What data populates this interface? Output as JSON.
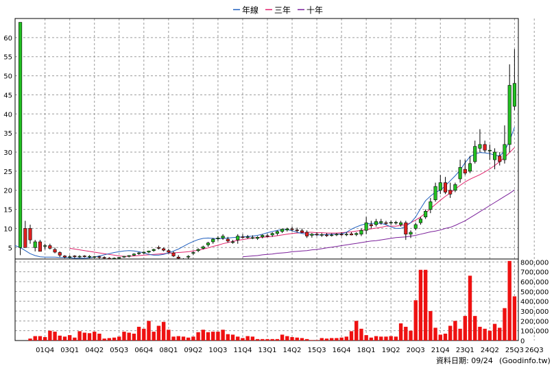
{
  "chart_data": {
    "type": "candlestick",
    "legend": [
      {
        "name": "年線",
        "color": "#1f5fbf"
      },
      {
        "name": "三年",
        "color": "#e0206a"
      },
      {
        "name": "十年",
        "color": "#7a1f9a"
      }
    ],
    "legend_position": "top-center",
    "price_axis": {
      "ylim": [
        2,
        65
      ],
      "ticks": [
        5,
        10,
        15,
        20,
        25,
        30,
        35,
        40,
        45,
        50,
        55,
        60
      ]
    },
    "volume_axis": {
      "ylim": [
        0,
        830000
      ],
      "ticks": [
        "0",
        "100,000",
        "200,000",
        "300,000",
        "400,000",
        "500,000",
        "600,000",
        "700,000",
        "800,000"
      ],
      "tick_values": [
        0,
        100000,
        200000,
        300000,
        400000,
        500000,
        600000,
        700000,
        800000
      ]
    },
    "x_tick_labels": [
      "01Q4",
      "03Q1",
      "04Q2",
      "05Q3",
      "06Q4",
      "08Q1",
      "09Q2",
      "10Q3",
      "11Q4",
      "13Q1",
      "14Q2",
      "15Q3",
      "16Q4",
      "18Q1",
      "19Q2",
      "20Q3",
      "21Q4",
      "23Q1",
      "24Q2",
      "25Q3",
      "26Q3"
    ],
    "x_tick_index": [
      5,
      10,
      15,
      20,
      25,
      30,
      35,
      40,
      45,
      50,
      55,
      60,
      65,
      70,
      75,
      80,
      85,
      90,
      95,
      100,
      104
    ],
    "grid": true,
    "up_color": "#22c022",
    "down_color": "#e02020",
    "volume_color": "#ee1111",
    "candles": [
      {
        "o": 5,
        "h": 64,
        "l": 3,
        "c": 64
      },
      {
        "o": 10,
        "h": 12,
        "l": 5,
        "c": 5
      },
      {
        "o": 10,
        "h": 11,
        "l": 6,
        "c": 7
      },
      {
        "o": 5,
        "h": 7,
        "l": 4,
        "c": 6.5
      },
      {
        "o": 6.5,
        "h": 7,
        "l": 4,
        "c": 4
      },
      {
        "o": 5.5,
        "h": 6,
        "l": 4.5,
        "c": 5.5
      },
      {
        "o": 5.5,
        "h": 6,
        "l": 4.5,
        "c": 4.8
      },
      {
        "o": 4.5,
        "h": 5,
        "l": 3.5,
        "c": 3.8
      },
      {
        "o": 3.7,
        "h": 4,
        "l": 2.5,
        "c": 3
      },
      {
        "o": 2.8,
        "h": 3,
        "l": 2.2,
        "c": 2.5
      },
      {
        "o": 2.5,
        "h": 3,
        "l": 2.2,
        "c": 2.6
      },
      {
        "o": 2.8,
        "h": 3,
        "l": 2.2,
        "c": 2.6
      },
      {
        "o": 2.6,
        "h": 3,
        "l": 2.3,
        "c": 2.7
      },
      {
        "o": 2.8,
        "h": 3,
        "l": 2.4,
        "c": 2.6
      },
      {
        "o": 2.5,
        "h": 3,
        "l": 2.2,
        "c": 2.7
      },
      {
        "o": 2.5,
        "h": 2.8,
        "l": 2.2,
        "c": 2.6
      },
      {
        "o": 2.6,
        "h": 2.8,
        "l": 2.1,
        "c": 2.4
      },
      {
        "o": 2.4,
        "h": 2.7,
        "l": 2.1,
        "c": 2.3
      },
      {
        "o": 2.2,
        "h": 2.5,
        "l": 1.8,
        "c": 2
      },
      {
        "o": 2.1,
        "h": 2.4,
        "l": 1.9,
        "c": 2.2
      },
      {
        "o": 2.2,
        "h": 2.5,
        "l": 2,
        "c": 2.4
      },
      {
        "o": 2.5,
        "h": 2.8,
        "l": 2.3,
        "c": 2.7
      },
      {
        "o": 2.7,
        "h": 3,
        "l": 2.4,
        "c": 2.9
      },
      {
        "o": 3,
        "h": 3.5,
        "l": 2.8,
        "c": 3.3
      },
      {
        "o": 3.4,
        "h": 3.8,
        "l": 3.1,
        "c": 3.6
      },
      {
        "o": 3.6,
        "h": 4,
        "l": 3.3,
        "c": 3.8
      },
      {
        "o": 3.8,
        "h": 4.2,
        "l": 3.5,
        "c": 4.1
      },
      {
        "o": 4.2,
        "h": 4.7,
        "l": 3.9,
        "c": 4.5
      },
      {
        "o": 5,
        "h": 5.5,
        "l": 4.5,
        "c": 4.8
      },
      {
        "o": 4.7,
        "h": 5,
        "l": 4,
        "c": 4.3
      },
      {
        "o": 4.2,
        "h": 4.6,
        "l": 3.5,
        "c": 3.8
      },
      {
        "o": 3.6,
        "h": 4,
        "l": 2.5,
        "c": 2.8
      },
      {
        "o": 2.5,
        "h": 3,
        "l": 1.2,
        "c": 2.2
      },
      {
        "o": 1.8,
        "h": 2.2,
        "l": 1.5,
        "c": 2
      },
      {
        "o": 2.5,
        "h": 3,
        "l": 2,
        "c": 2.7
      },
      {
        "o": 3.5,
        "h": 4,
        "l": 3,
        "c": 3.7
      },
      {
        "o": 4.2,
        "h": 4.8,
        "l": 3.8,
        "c": 4.5
      },
      {
        "o": 4.8,
        "h": 5.5,
        "l": 4.5,
        "c": 5.2
      },
      {
        "o": 5.7,
        "h": 6.5,
        "l": 5.2,
        "c": 6.2
      },
      {
        "o": 6.5,
        "h": 7.5,
        "l": 6,
        "c": 7.2
      },
      {
        "o": 7.3,
        "h": 8,
        "l": 6.8,
        "c": 7.5
      },
      {
        "o": 7.5,
        "h": 8.5,
        "l": 7,
        "c": 8
      },
      {
        "o": 7.2,
        "h": 7.8,
        "l": 6.3,
        "c": 6.7
      },
      {
        "o": 6.5,
        "h": 7,
        "l": 6,
        "c": 6.5
      },
      {
        "o": 7,
        "h": 8.5,
        "l": 6,
        "c": 8
      },
      {
        "o": 7.8,
        "h": 8.5,
        "l": 7.3,
        "c": 7.7
      },
      {
        "o": 7.6,
        "h": 8.3,
        "l": 7.3,
        "c": 7.8
      },
      {
        "o": 7.6,
        "h": 8.2,
        "l": 7.2,
        "c": 7.6
      },
      {
        "o": 7.4,
        "h": 8,
        "l": 7,
        "c": 7.7
      },
      {
        "o": 7.8,
        "h": 8.5,
        "l": 7.4,
        "c": 8.2
      },
      {
        "o": 8.1,
        "h": 8.6,
        "l": 7.7,
        "c": 8
      },
      {
        "o": 8.3,
        "h": 9,
        "l": 7.8,
        "c": 8.7
      },
      {
        "o": 8.7,
        "h": 9.5,
        "l": 8.2,
        "c": 9.2
      },
      {
        "o": 9.2,
        "h": 10,
        "l": 8.8,
        "c": 9.8
      },
      {
        "o": 9.6,
        "h": 10.2,
        "l": 9.2,
        "c": 9.9
      },
      {
        "o": 9.9,
        "h": 10.5,
        "l": 9.2,
        "c": 9.7
      },
      {
        "o": 9.6,
        "h": 10.2,
        "l": 9,
        "c": 9.4
      },
      {
        "o": 9.4,
        "h": 10,
        "l": 8.8,
        "c": 9
      },
      {
        "o": 9,
        "h": 9.5,
        "l": 7.5,
        "c": 8
      },
      {
        "o": 8.2,
        "h": 8.8,
        "l": 7.6,
        "c": 8.5
      },
      {
        "o": 8.5,
        "h": 9,
        "l": 8,
        "c": 8.4
      },
      {
        "o": 8.3,
        "h": 8.8,
        "l": 7.8,
        "c": 8.4
      },
      {
        "o": 8.3,
        "h": 8.8,
        "l": 7.8,
        "c": 8.1
      },
      {
        "o": 8.2,
        "h": 8.7,
        "l": 7.9,
        "c": 8.3
      },
      {
        "o": 8.3,
        "h": 8.8,
        "l": 8,
        "c": 8.5
      },
      {
        "o": 8.5,
        "h": 9,
        "l": 8,
        "c": 8.4
      },
      {
        "o": 8.4,
        "h": 9,
        "l": 8,
        "c": 8.5
      },
      {
        "o": 8.6,
        "h": 9,
        "l": 8.2,
        "c": 8.3
      },
      {
        "o": 8.4,
        "h": 9,
        "l": 8,
        "c": 8.7
      },
      {
        "o": 8.5,
        "h": 10,
        "l": 8,
        "c": 9.5
      },
      {
        "o": 9.5,
        "h": 13,
        "l": 8.5,
        "c": 11.5
      },
      {
        "o": 11,
        "h": 12,
        "l": 10,
        "c": 10.7
      },
      {
        "o": 11,
        "h": 12.5,
        "l": 10.5,
        "c": 11.8
      },
      {
        "o": 11.5,
        "h": 12.5,
        "l": 11,
        "c": 11.8
      },
      {
        "o": 11.5,
        "h": 12,
        "l": 11,
        "c": 11.3
      },
      {
        "o": 11.5,
        "h": 12,
        "l": 11,
        "c": 11.6
      },
      {
        "o": 11.5,
        "h": 12,
        "l": 11,
        "c": 11.6
      },
      {
        "o": 11,
        "h": 12,
        "l": 10.5,
        "c": 11.5
      },
      {
        "o": 11.5,
        "h": 12,
        "l": 7,
        "c": 8.5
      },
      {
        "o": 8.5,
        "h": 9.5,
        "l": 7.5,
        "c": 9
      },
      {
        "o": 10,
        "h": 11.5,
        "l": 9.5,
        "c": 11
      },
      {
        "o": 11.5,
        "h": 13,
        "l": 11,
        "c": 12.5
      },
      {
        "o": 13,
        "h": 15,
        "l": 12.5,
        "c": 14.5
      },
      {
        "o": 15,
        "h": 18,
        "l": 14,
        "c": 17
      },
      {
        "o": 17.5,
        "h": 22,
        "l": 17,
        "c": 21
      },
      {
        "o": 20,
        "h": 24,
        "l": 19,
        "c": 22
      },
      {
        "o": 22,
        "h": 23.5,
        "l": 19,
        "c": 19.5
      },
      {
        "o": 20,
        "h": 22,
        "l": 18,
        "c": 19
      },
      {
        "o": 20,
        "h": 22,
        "l": 19.5,
        "c": 21.5
      },
      {
        "o": 23,
        "h": 28,
        "l": 22,
        "c": 26
      },
      {
        "o": 25.5,
        "h": 28,
        "l": 24,
        "c": 24.5
      },
      {
        "o": 25,
        "h": 29,
        "l": 24.5,
        "c": 27
      },
      {
        "o": 27.5,
        "h": 33,
        "l": 27,
        "c": 31.5
      },
      {
        "o": 31,
        "h": 36,
        "l": 30,
        "c": 32
      },
      {
        "o": 32,
        "h": 33,
        "l": 30,
        "c": 30.5
      },
      {
        "o": 30.5,
        "h": 32,
        "l": 28,
        "c": 30.5
      },
      {
        "o": 28,
        "h": 31,
        "l": 25.5,
        "c": 30
      },
      {
        "o": 29,
        "h": 30,
        "l": 26.5,
        "c": 27.5
      },
      {
        "o": 28,
        "h": 37,
        "l": 27,
        "c": 32
      },
      {
        "o": 32,
        "h": 53,
        "l": 30,
        "c": 47.5
      },
      {
        "o": 42,
        "h": 57,
        "l": 41,
        "c": 48
      }
    ],
    "ma_year": [
      5.6,
      5.5,
      5,
      4.2,
      3.4,
      2.9,
      2.6,
      2.5,
      2.5,
      2.5,
      2.4,
      2.4,
      2.3,
      2.2,
      2.2,
      2.2,
      2.3,
      2.5,
      2.8,
      3.1,
      3.4,
      3.7,
      3.9,
      4.1,
      4.2,
      4.1,
      3.9,
      3.6,
      3.2,
      3.0,
      3.0,
      3.2,
      3.6,
      4.1,
      4.6,
      5.3,
      6,
      6.6,
      7.1,
      7.4,
      7.5,
      7.4,
      7.3,
      7.4,
      7.5,
      7.6,
      7.7,
      7.8,
      7.9,
      8,
      8.2,
      8.5,
      8.9,
      9.2,
      9.5,
      9.7,
      9.7,
      9.4,
      9,
      8.7,
      8.5,
      8.4,
      8.3,
      8.3,
      8.4,
      8.5,
      8.5,
      8.6,
      9,
      9.8,
      10.4,
      10.9,
      11.2,
      11.3,
      11.4,
      11.3,
      11,
      10.4,
      10,
      10,
      10.6,
      11.5,
      13,
      15.2,
      17.3,
      18.5,
      19.5,
      20,
      21.2,
      22.5,
      23.8,
      25.3,
      27.2,
      28.8,
      29.5,
      29.9,
      29.8,
      29.6,
      29.2,
      29,
      30.3,
      33,
      36.5
    ],
    "ma3": [
      4.8,
      4.6,
      4.4,
      4.2,
      4.0,
      3.8,
      3.6,
      3.4,
      3.2,
      3.0,
      2.8,
      2.7,
      2.7,
      2.8,
      2.9,
      3.0,
      3.1,
      3.2,
      3.3,
      3.4,
      3.5,
      3.6,
      3.7,
      3.8,
      3.9,
      4.1,
      4.3,
      4.6,
      4.9,
      5.3,
      5.6,
      6,
      6.3,
      6.6,
      6.9,
      7.1,
      7.3,
      7.5,
      7.6,
      7.7,
      7.8,
      7.9,
      8.1,
      8.3,
      8.5,
      8.7,
      8.8,
      8.9,
      9,
      9,
      8.9,
      8.9,
      8.8,
      8.8,
      8.8,
      8.9,
      9,
      9.1,
      9.3,
      9.5,
      9.7,
      9.9,
      10.1,
      10.3,
      10.6,
      10.6,
      10.6,
      10.8,
      11,
      11.5,
      12.2,
      13,
      14,
      15.2,
      16.3,
      17.4,
      18.4,
      19.3,
      20.3,
      21.3,
      22.2,
      22.9,
      23.5,
      24.1,
      24.8,
      25.6,
      26.5,
      27.5,
      28.6,
      29.9,
      31.2
    ],
    "ma10": [
      2.6,
      2.7,
      2.8,
      2.9,
      3.1,
      3.2,
      3.3,
      3.5,
      3.6,
      3.7,
      3.9,
      4,
      4.1,
      4.2,
      4.4,
      4.5,
      4.7,
      4.9,
      5.1,
      5.3,
      5.5,
      5.7,
      5.9,
      6.1,
      6.3,
      6.5,
      6.7,
      6.8,
      7,
      7.2,
      7.4,
      7.6,
      7.7,
      7.8,
      8,
      8.2,
      8.5,
      8.8,
      9.1,
      9.3,
      9.6,
      10,
      10.3,
      10.8,
      11.4,
      12,
      12.8,
      13.6,
      14.4,
      15.2,
      16,
      16.8,
      17.6,
      18.4,
      19.2,
      20.1
    ],
    "volume": [
      20000,
      45000,
      45000,
      35000,
      100000,
      90000,
      50000,
      40000,
      55000,
      30000,
      95000,
      80000,
      75000,
      90000,
      70000,
      20000,
      25000,
      30000,
      40000,
      90000,
      80000,
      70000,
      140000,
      120000,
      200000,
      90000,
      150000,
      190000,
      110000,
      40000,
      45000,
      40000,
      30000,
      40000,
      85000,
      110000,
      85000,
      90000,
      90000,
      110000,
      65000,
      60000,
      40000,
      25000,
      45000,
      40000,
      15000,
      15000,
      15000,
      15000,
      15000,
      60000,
      45000,
      35000,
      30000,
      25000,
      15000,
      5000,
      5000,
      25000,
      20000,
      25000,
      25000,
      30000,
      40000,
      95000,
      200000,
      120000,
      55000,
      30000,
      45000,
      40000,
      40000,
      45000,
      40000,
      175000,
      140000,
      100000,
      410000,
      720000,
      720000,
      300000,
      130000,
      60000,
      70000,
      150000,
      200000,
      120000,
      250000,
      660000,
      250000,
      140000,
      120000,
      100000,
      170000,
      130000,
      330000,
      810000,
      450000
    ]
  },
  "footer": {
    "date_text": "資料日期: 09/24",
    "source_text": "(Goodinfo.tw)"
  }
}
